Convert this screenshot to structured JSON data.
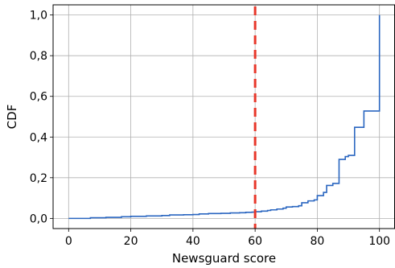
{
  "chart_data": {
    "type": "line",
    "title": "",
    "xlabel": "Newsguard score",
    "ylabel": "CDF",
    "xlim": [
      -5,
      105
    ],
    "ylim": [
      -0.05,
      1.05
    ],
    "x_ticks": [
      0,
      20,
      40,
      60,
      80,
      100
    ],
    "x_tick_labels": [
      "0",
      "20",
      "40",
      "60",
      "80",
      "100"
    ],
    "y_ticks": [
      0.0,
      0.2,
      0.4,
      0.6,
      0.8,
      1.0
    ],
    "y_tick_labels": [
      "0,0",
      "0,2",
      "0,4",
      "0,6",
      "0,8",
      "1,0"
    ],
    "grid": true,
    "series": [
      {
        "color": "#2a66c0",
        "step": true,
        "points": [
          [
            0,
            0.0
          ],
          [
            7,
            0.003
          ],
          [
            12,
            0.005
          ],
          [
            17,
            0.008
          ],
          [
            20,
            0.01
          ],
          [
            25,
            0.012
          ],
          [
            30,
            0.014
          ],
          [
            32.5,
            0.017
          ],
          [
            37,
            0.018
          ],
          [
            40,
            0.019
          ],
          [
            42,
            0.022
          ],
          [
            45,
            0.024
          ],
          [
            49,
            0.025
          ],
          [
            52,
            0.027
          ],
          [
            55,
            0.028
          ],
          [
            57,
            0.03
          ],
          [
            59,
            0.031
          ],
          [
            60,
            0.033
          ],
          [
            62,
            0.036
          ],
          [
            64,
            0.039
          ],
          [
            65,
            0.042
          ],
          [
            67,
            0.046
          ],
          [
            69,
            0.05
          ],
          [
            70,
            0.056
          ],
          [
            72,
            0.058
          ],
          [
            74,
            0.062
          ],
          [
            75,
            0.077
          ],
          [
            77,
            0.086
          ],
          [
            79,
            0.091
          ],
          [
            80,
            0.112
          ],
          [
            82,
            0.128
          ],
          [
            83,
            0.162
          ],
          [
            85,
            0.172
          ],
          [
            87,
            0.29
          ],
          [
            89,
            0.304
          ],
          [
            90,
            0.31
          ],
          [
            92,
            0.448
          ],
          [
            95,
            0.528
          ],
          [
            99.9,
            0.528
          ],
          [
            100,
            1.0
          ]
        ]
      }
    ],
    "reference_line": {
      "x": 60,
      "color": "#e8372a",
      "style": "dashed"
    }
  }
}
